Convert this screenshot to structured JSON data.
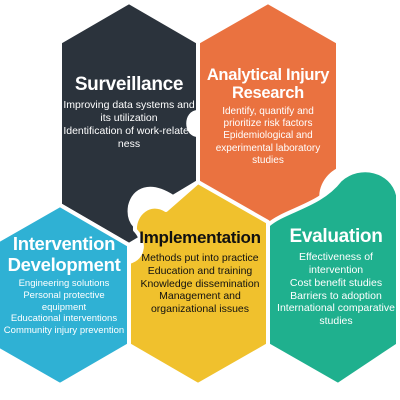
{
  "colors": {
    "surveillance": "#2b333c",
    "analytical": "#ea7240",
    "intervention": "#2fb1d4",
    "implementation": "#f0c12d",
    "evaluation": "#1fb08e",
    "outline": "#ffffff"
  },
  "blocks": {
    "surveillance": {
      "title": "Surveillance",
      "items": [
        "Improving data systems and its utilization",
        "Identification of work-related ness"
      ]
    },
    "analytical": {
      "title": "Analytical Injury Research",
      "items": [
        "Identify, quantify and prioritize risk factors",
        "Epidemiological and experimental laboratory studies"
      ]
    },
    "intervention": {
      "title": "Intervention Development",
      "items": [
        "Engineering solutions",
        "Personal protective equipment",
        "Educational interventions",
        "Community injury prevention"
      ]
    },
    "implementation": {
      "title": "Implementation",
      "items": [
        "Methods put into practice",
        "Education and training",
        "Knowledge dissemination",
        "Management and organizational issues"
      ]
    },
    "evaluation": {
      "title": "Evaluation",
      "items": [
        "Effectiveness of intervention",
        "Cost benefit studies",
        "Barriers to adoption",
        "International comparative studies"
      ]
    }
  }
}
